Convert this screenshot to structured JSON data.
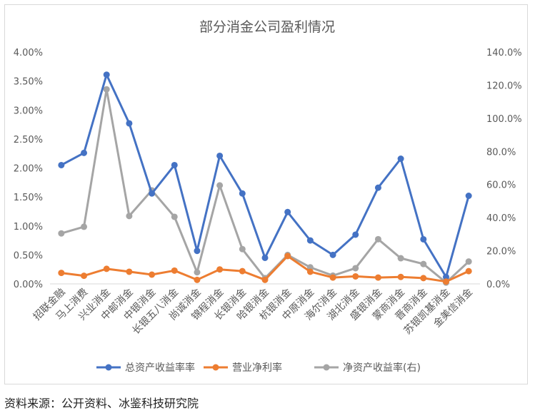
{
  "source_text": "资料来源：公开资料、冰鉴科技研究院",
  "chart_data": {
    "type": "line",
    "title": "部分消金公司盈利情况",
    "categories": [
      "招联金融",
      "马上消费",
      "兴业消金",
      "中邮消金",
      "中银消金",
      "长银五八消金",
      "尚诚消金",
      "锦程消金",
      "长银消金",
      "哈银消金",
      "杭银消金",
      "中原消金",
      "海尔消金",
      "湖北消金",
      "盛银消金",
      "蒙商消金",
      "晋商消金",
      "苏银凯基消金",
      "金美信消金"
    ],
    "y_left": {
      "ticks": [
        "0.00%",
        "0.50%",
        "1.00%",
        "1.50%",
        "2.00%",
        "2.50%",
        "3.00%",
        "3.50%",
        "4.00%"
      ],
      "lim": [
        0,
        4.0
      ]
    },
    "y_right": {
      "ticks": [
        "0.0%",
        "20.0%",
        "40.0%",
        "60.0%",
        "80.0%",
        "100.0%",
        "120.0%",
        "140.0%"
      ],
      "lim": [
        0,
        140
      ]
    },
    "grid": false,
    "legend_position": "bottom",
    "series": [
      {
        "name": "总资产收益率率",
        "axis": "left",
        "color": "#4472C4",
        "values": [
          2.05,
          2.26,
          3.61,
          2.77,
          1.56,
          2.05,
          0.57,
          2.21,
          1.56,
          0.45,
          1.24,
          0.75,
          0.5,
          0.85,
          1.66,
          2.16,
          0.77,
          0.12,
          1.52
        ]
      },
      {
        "name": "营业净利率",
        "axis": "left",
        "color": "#ED7D31",
        "values": [
          0.19,
          0.14,
          0.26,
          0.21,
          0.16,
          0.23,
          0.07,
          0.25,
          0.22,
          0.07,
          0.48,
          0.21,
          0.11,
          0.13,
          0.11,
          0.12,
          0.1,
          0.04,
          0.22
        ]
      },
      {
        "name": "净资产收益率(右)",
        "axis": "right",
        "color": "#A5A5A5",
        "values": [
          30.5,
          34.5,
          117.5,
          41,
          56.5,
          40.5,
          7.0,
          59.5,
          21.0,
          3.5,
          17.5,
          10.0,
          5.0,
          9.5,
          27.0,
          15.5,
          12.0,
          0.8,
          13.5
        ]
      }
    ]
  }
}
